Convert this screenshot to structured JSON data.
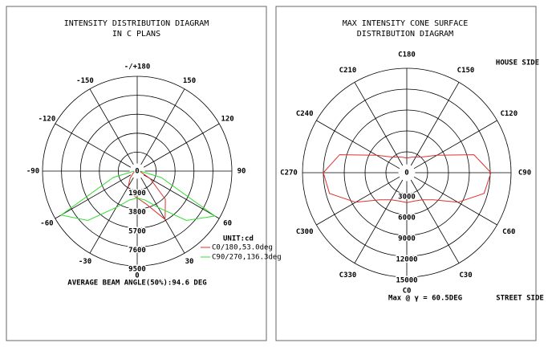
{
  "chart_data": [
    {
      "type": "polar",
      "title": [
        "INTENSITY DISTRIBUTION DIAGRAM",
        "IN C PLANS"
      ],
      "theta_ticks": [
        {
          "value": 180,
          "label": "-/+180"
        },
        150,
        120,
        90,
        60,
        30,
        0,
        -30,
        -60,
        -90,
        -120,
        -150
      ],
      "rlim": [
        0,
        9500
      ],
      "rticks": [
        0,
        1900,
        3800,
        5700,
        7600,
        9500
      ],
      "theta": [
        -90,
        -75,
        -60,
        -45,
        -30,
        -15,
        0,
        15,
        30,
        45,
        60,
        75,
        90
      ],
      "series": [
        {
          "name": "C0/180,53.0deg",
          "color": "#e03030",
          "values": [
            200,
            300,
            500,
            1000,
            1800,
            2400,
            2700,
            3400,
            5600,
            4000,
            1500,
            400,
            200
          ]
        },
        {
          "name": "C90/270,136.3deg",
          "color": "#33dd33",
          "values": [
            300,
            2500,
            8800,
            7000,
            4200,
            3000,
            2700,
            3000,
            4200,
            7000,
            9000,
            2500,
            300
          ]
        }
      ],
      "unit": "UNIT:cd",
      "note": "AVERAGE BEAM ANGLE(50%):94.6 DEG"
    },
    {
      "type": "polar",
      "title": [
        "MAX INTENSITY CONE SURFACE",
        "DISTRIBUTION DIAGRAM"
      ],
      "theta_ticks": [
        {
          "value": 180,
          "label": "C180"
        },
        {
          "value": 150,
          "label": "C150"
        },
        {
          "value": 120,
          "label": "C120"
        },
        {
          "value": 90,
          "label": "C90"
        },
        {
          "value": 60,
          "label": "C60"
        },
        {
          "value": 30,
          "label": "C30"
        },
        {
          "value": 0,
          "label": "C0"
        },
        {
          "value": 330,
          "label": "C330"
        },
        {
          "value": 300,
          "label": "C300"
        },
        {
          "value": 270,
          "label": "C270"
        },
        {
          "value": 240,
          "label": "C240"
        },
        {
          "value": 210,
          "label": "C210"
        }
      ],
      "rlim": [
        0,
        15000
      ],
      "rticks": [
        0,
        3000,
        6000,
        9000,
        12000,
        15000
      ],
      "theta": [
        0,
        15,
        30,
        45,
        60,
        75,
        90,
        105,
        120,
        135,
        150,
        165,
        180,
        195,
        210,
        225,
        240,
        255,
        270,
        285,
        300,
        315,
        330,
        345
      ],
      "closed": true,
      "series": [
        {
          "color": "#e03030",
          "values": [
            4300,
            4200,
            4500,
            5500,
            8500,
            11500,
            12100,
            10000,
            5000,
            3200,
            2600,
            2300,
            2100,
            2300,
            2600,
            3200,
            5000,
            10000,
            12000,
            11500,
            8500,
            5500,
            4500,
            4200
          ]
        }
      ],
      "annotations": [
        "HOUSE SIDE",
        "STREET SIDE",
        "Max @ γ = 60.5DEG"
      ]
    }
  ]
}
